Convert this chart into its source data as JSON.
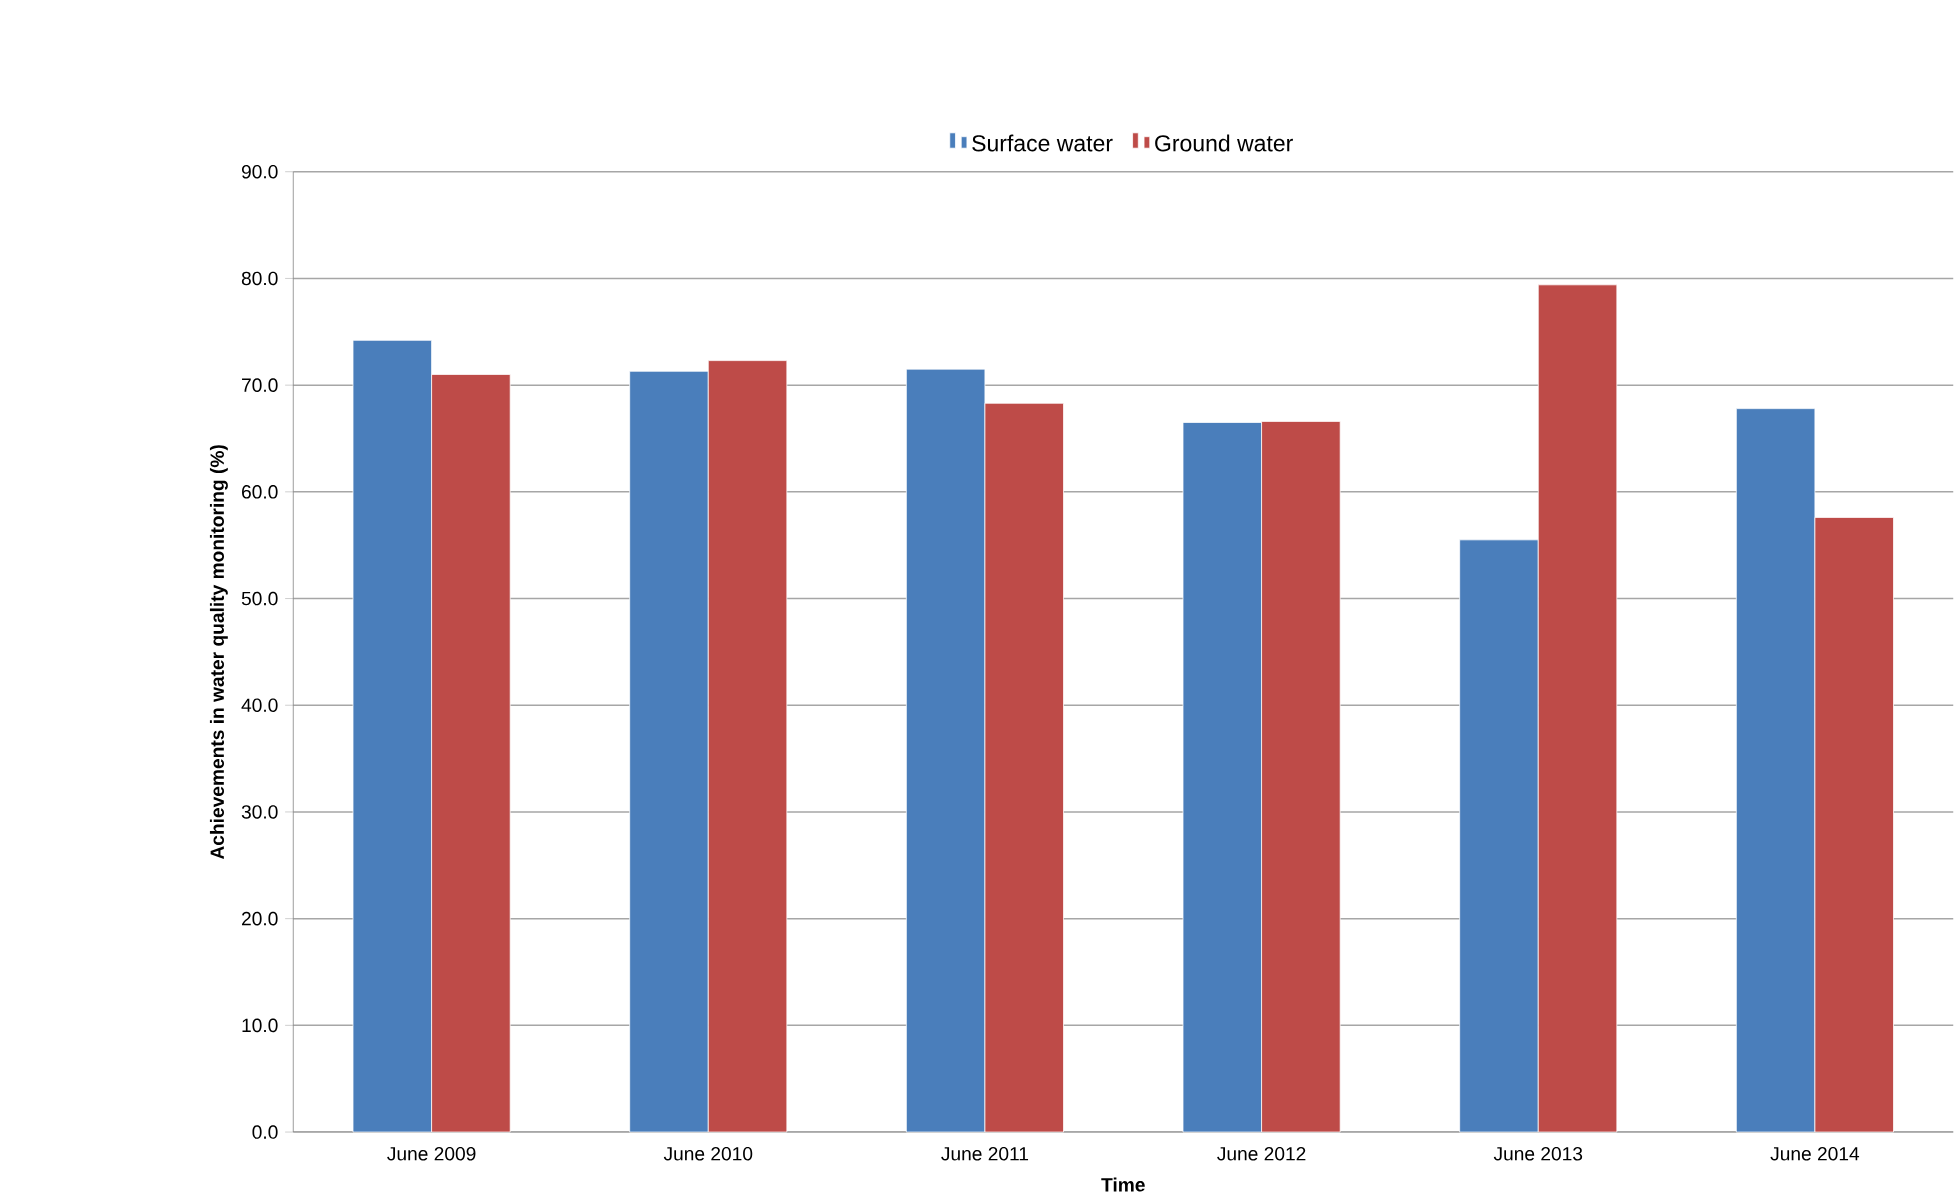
{
  "chart_data": {
    "type": "bar",
    "xlabel": "Time",
    "ylabel": "Achievements in water quality monitoring (%)",
    "categories": [
      "June 2009",
      "June 2010",
      "June 2011",
      "June 2012",
      "June 2013",
      "June 2014"
    ],
    "series": [
      {
        "name": "Surface water",
        "color": "#4a7ebb",
        "values": [
          74.2,
          71.3,
          71.5,
          66.5,
          55.5,
          67.8
        ]
      },
      {
        "name": "Ground water",
        "color": "#be4b48",
        "values": [
          71.0,
          72.3,
          68.3,
          66.6,
          79.4,
          57.6
        ]
      }
    ],
    "ylim": [
      0,
      90
    ],
    "yticks": [
      {
        "value": 0,
        "label": "0.0"
      },
      {
        "value": 10,
        "label": "10.0"
      },
      {
        "value": 20,
        "label": "20.0"
      },
      {
        "value": 30,
        "label": "30.0"
      },
      {
        "value": 40,
        "label": "40.0"
      },
      {
        "value": 50,
        "label": "50.0"
      },
      {
        "value": 60,
        "label": "60.0"
      },
      {
        "value": 70,
        "label": "70.0"
      },
      {
        "value": 80,
        "label": "80.0"
      },
      {
        "value": 90,
        "label": "90.0"
      }
    ],
    "grid": "y",
    "legend": "top"
  }
}
